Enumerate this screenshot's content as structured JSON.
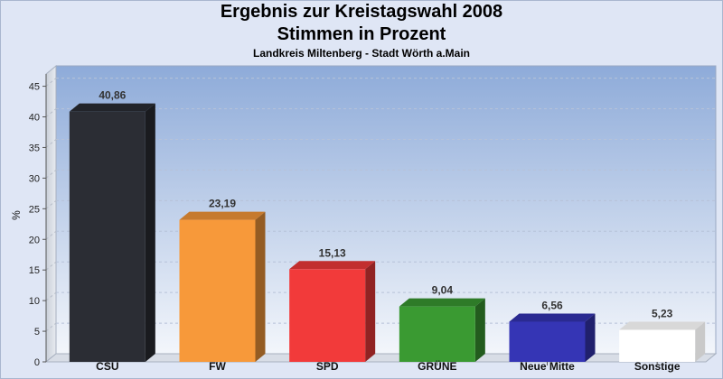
{
  "header": {
    "title": "Ergebnis zur Kreistagswahl 2008",
    "subtitle": "Stimmen in Prozent",
    "location": "Landkreis Miltenberg - Stadt Wörth a.Main"
  },
  "chart_data": {
    "type": "bar",
    "categories": [
      "CSU",
      "FW",
      "SPD",
      "GRÜNE",
      "Neue Mitte",
      "Sonstige"
    ],
    "values": [
      40.86,
      23.19,
      15.13,
      9.04,
      6.56,
      5.23
    ],
    "value_labels": [
      "40,86",
      "23,19",
      "15,13",
      "9,04",
      "6,56",
      "5,23"
    ],
    "colors": [
      "#2b2d34",
      "#f7993a",
      "#f23a3a",
      "#3a9a32",
      "#3535b5",
      "#ffffff"
    ],
    "ylabel": "%",
    "ylim": [
      0,
      47
    ],
    "yticks": [
      0,
      5,
      10,
      15,
      20,
      25,
      30,
      35,
      40,
      45
    ],
    "grid": true
  }
}
